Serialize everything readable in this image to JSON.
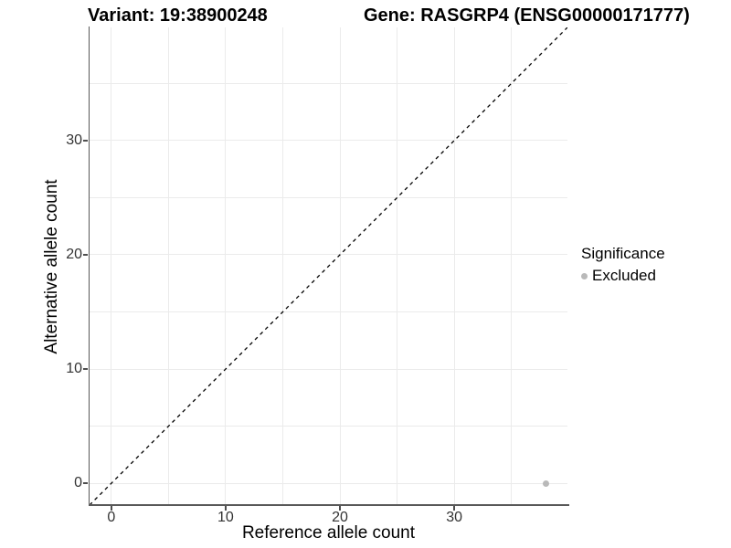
{
  "chart_data": {
    "type": "scatter",
    "title_left": "Variant: 19:38900248",
    "title_right": "Gene: RASGRP4 (ENSG00000171777)",
    "xlabel": "Reference allele count",
    "ylabel": "Alternative allele count",
    "x_ticks": [
      0,
      10,
      20,
      30
    ],
    "y_ticks": [
      0,
      10,
      20,
      30
    ],
    "axis_range": [
      -1.9,
      39.9
    ],
    "grid": true,
    "grid_step": 5,
    "identity_line": {
      "style": "dashed",
      "color": "#000000",
      "dash": "4,4",
      "width": 1.3
    },
    "points": [
      {
        "x": 38,
        "y": 0,
        "series": "Excluded"
      }
    ],
    "legend": {
      "position": "right",
      "title": "Significance",
      "items": [
        {
          "label": "Excluded",
          "color": "#b9b9b9"
        }
      ]
    },
    "colors": {
      "point": "#b9b9b9",
      "grid": "#ebebeb",
      "axis_line": "#595959",
      "tick_text": "#333333",
      "title_text": "#000000"
    }
  }
}
